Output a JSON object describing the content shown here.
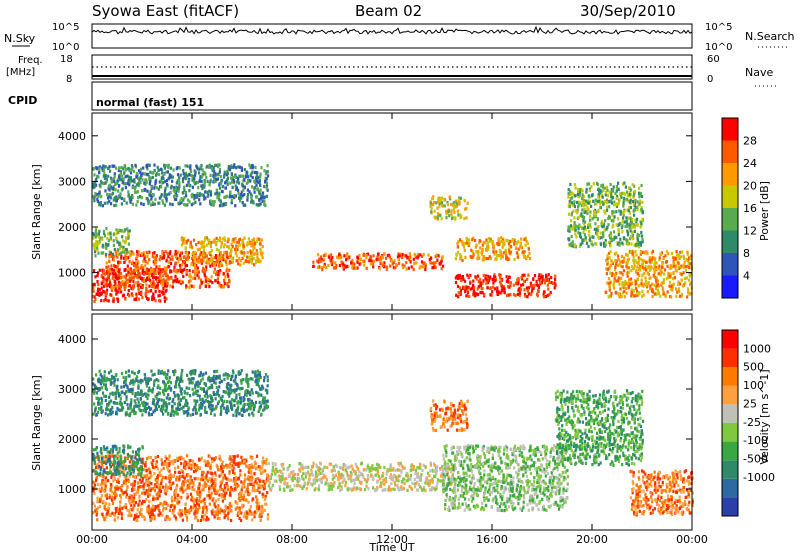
{
  "header": {
    "station": "Syowa East (fitACF)",
    "beam": "Beam 02",
    "date": "30/Sep/2010"
  },
  "strips": {
    "nsky_label": "N.Sky",
    "nsky_top": "10^5",
    "nsky_bottom": "10^0",
    "nsearch_label": "N.Search",
    "nsearch_top": "10^5",
    "nsearch_bottom": "10^0",
    "freq_label_1": "Freq.",
    "freq_label_2": "[MHz]",
    "freq_top": "18",
    "freq_bottom": "8",
    "nave_label": "Nave",
    "nave_top": "60",
    "nave_bottom": "0",
    "cpid_label": "CPID",
    "cpid_value": "normal (fast) 151"
  },
  "chart_data": [
    {
      "type": "heatmap",
      "name": "power",
      "ylabel": "Slant Range [km]",
      "ylim": [
        180,
        4500
      ],
      "yticks": [
        "1000",
        "2000",
        "3000",
        "4000"
      ],
      "colorbar_label": "Power [dB]",
      "colorbar_ticks": [
        "4",
        "8",
        "12",
        "16",
        "20",
        "24",
        "28"
      ],
      "colors": [
        "#1a1aff",
        "#2e55b8",
        "#2e8a6a",
        "#5aaa50",
        "#c8c800",
        "#ff9a00",
        "#ff5a00",
        "#ff0000"
      ],
      "echo_bands": [
        {
          "t0": 0.0,
          "t1": 3.0,
          "r0": 400,
          "r1": 1100,
          "level": 7
        },
        {
          "t0": 0.5,
          "t1": 5.5,
          "r0": 700,
          "r1": 1500,
          "level": 6
        },
        {
          "t0": 3.5,
          "t1": 6.8,
          "r0": 1200,
          "r1": 1800,
          "level": 5
        },
        {
          "t0": 0.0,
          "t1": 1.5,
          "r0": 1400,
          "r1": 2000,
          "level": 3
        },
        {
          "t0": 8.8,
          "t1": 14.0,
          "r0": 1100,
          "r1": 1450,
          "level": 6
        },
        {
          "t0": 14.5,
          "t1": 18.5,
          "r0": 500,
          "r1": 1000,
          "level": 7
        },
        {
          "t0": 14.5,
          "t1": 17.5,
          "r0": 1300,
          "r1": 1800,
          "level": 5
        },
        {
          "t0": 13.5,
          "t1": 15.0,
          "r0": 2200,
          "r1": 2700,
          "level": 4
        },
        {
          "t0": 19.0,
          "t1": 22.0,
          "r0": 1600,
          "r1": 3000,
          "level": 3
        },
        {
          "t0": 20.5,
          "t1": 24.0,
          "r0": 500,
          "r1": 1500,
          "level": 5
        },
        {
          "t0": 0.0,
          "t1": 7.0,
          "r0": 2500,
          "r1": 3400,
          "level": 2
        }
      ]
    },
    {
      "type": "heatmap",
      "name": "velocity",
      "ylabel": "Slant Range [km]",
      "ylim": [
        180,
        4500
      ],
      "yticks": [
        "1000",
        "2000",
        "3000",
        "4000"
      ],
      "colorbar_label": "Velocity [m s^-1]",
      "colorbar_ticks": [
        "1000",
        "500",
        "100",
        "25",
        "-25",
        "-100",
        "-500",
        "-1000"
      ],
      "colors": [
        "#2a3faa",
        "#2e6aa0",
        "#2e8a6a",
        "#3aa840",
        "#80c840",
        "#c0c0b8",
        "#ffa040",
        "#ff7a00",
        "#ff3000",
        "#ff0000"
      ],
      "echo_bands": [
        {
          "t0": 0.0,
          "t1": 7.0,
          "r0": 400,
          "r1": 1700,
          "level": 7
        },
        {
          "t0": 0.0,
          "t1": 2.0,
          "r0": 1300,
          "r1": 1900,
          "level": 2
        },
        {
          "t0": 7.0,
          "t1": 14.5,
          "r0": 1000,
          "r1": 1550,
          "level": 5
        },
        {
          "t0": 13.5,
          "t1": 15.0,
          "r0": 2200,
          "r1": 2800,
          "level": 7
        },
        {
          "t0": 14.0,
          "t1": 19.0,
          "r0": 600,
          "r1": 1900,
          "level": 4
        },
        {
          "t0": 18.5,
          "t1": 22.0,
          "r0": 1500,
          "r1": 3000,
          "level": 3
        },
        {
          "t0": 21.5,
          "t1": 24.0,
          "r0": 500,
          "r1": 1400,
          "level": 7
        },
        {
          "t0": 0.0,
          "t1": 7.0,
          "r0": 2500,
          "r1": 3400,
          "level": 2
        }
      ]
    }
  ],
  "xaxis": {
    "label": "Time UT",
    "ticks": [
      "00:00",
      "04:00",
      "08:00",
      "12:00",
      "16:00",
      "20:00",
      "00:00"
    ]
  }
}
